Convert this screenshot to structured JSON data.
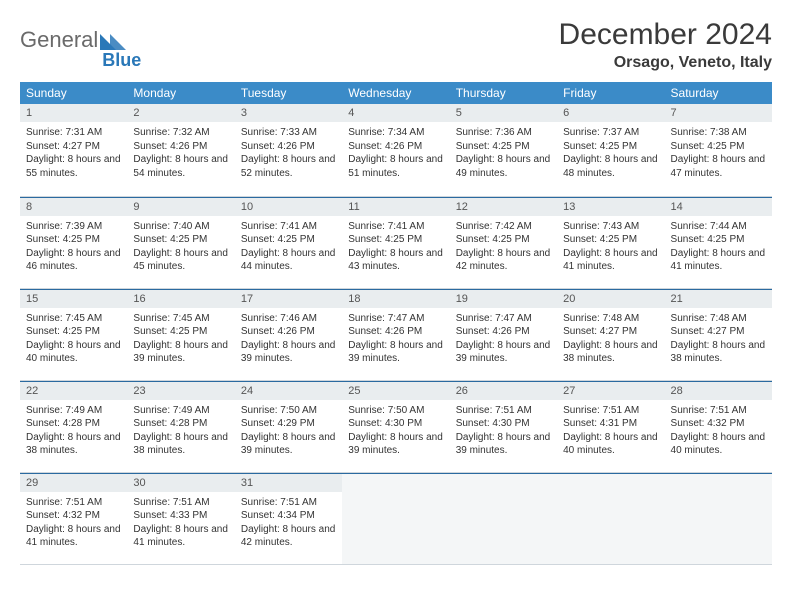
{
  "brand": {
    "part1": "General",
    "part2": "Blue"
  },
  "title": "December 2024",
  "location": "Orsago, Veneto, Italy",
  "colors": {
    "header_bg": "#3b8bc8",
    "header_text": "#ffffff",
    "daynum_bg": "#e9edef",
    "rule": "#2a6aa0",
    "brand_gray": "#6a6a6a",
    "brand_blue": "#2a78b8"
  },
  "daysOfWeek": [
    "Sunday",
    "Monday",
    "Tuesday",
    "Wednesday",
    "Thursday",
    "Friday",
    "Saturday"
  ],
  "days": [
    {
      "n": 1,
      "sr": "7:31 AM",
      "ss": "4:27 PM",
      "dl": "8 hours and 55 minutes."
    },
    {
      "n": 2,
      "sr": "7:32 AM",
      "ss": "4:26 PM",
      "dl": "8 hours and 54 minutes."
    },
    {
      "n": 3,
      "sr": "7:33 AM",
      "ss": "4:26 PM",
      "dl": "8 hours and 52 minutes."
    },
    {
      "n": 4,
      "sr": "7:34 AM",
      "ss": "4:26 PM",
      "dl": "8 hours and 51 minutes."
    },
    {
      "n": 5,
      "sr": "7:36 AM",
      "ss": "4:25 PM",
      "dl": "8 hours and 49 minutes."
    },
    {
      "n": 6,
      "sr": "7:37 AM",
      "ss": "4:25 PM",
      "dl": "8 hours and 48 minutes."
    },
    {
      "n": 7,
      "sr": "7:38 AM",
      "ss": "4:25 PM",
      "dl": "8 hours and 47 minutes."
    },
    {
      "n": 8,
      "sr": "7:39 AM",
      "ss": "4:25 PM",
      "dl": "8 hours and 46 minutes."
    },
    {
      "n": 9,
      "sr": "7:40 AM",
      "ss": "4:25 PM",
      "dl": "8 hours and 45 minutes."
    },
    {
      "n": 10,
      "sr": "7:41 AM",
      "ss": "4:25 PM",
      "dl": "8 hours and 44 minutes."
    },
    {
      "n": 11,
      "sr": "7:41 AM",
      "ss": "4:25 PM",
      "dl": "8 hours and 43 minutes."
    },
    {
      "n": 12,
      "sr": "7:42 AM",
      "ss": "4:25 PM",
      "dl": "8 hours and 42 minutes."
    },
    {
      "n": 13,
      "sr": "7:43 AM",
      "ss": "4:25 PM",
      "dl": "8 hours and 41 minutes."
    },
    {
      "n": 14,
      "sr": "7:44 AM",
      "ss": "4:25 PM",
      "dl": "8 hours and 41 minutes."
    },
    {
      "n": 15,
      "sr": "7:45 AM",
      "ss": "4:25 PM",
      "dl": "8 hours and 40 minutes."
    },
    {
      "n": 16,
      "sr": "7:45 AM",
      "ss": "4:25 PM",
      "dl": "8 hours and 39 minutes."
    },
    {
      "n": 17,
      "sr": "7:46 AM",
      "ss": "4:26 PM",
      "dl": "8 hours and 39 minutes."
    },
    {
      "n": 18,
      "sr": "7:47 AM",
      "ss": "4:26 PM",
      "dl": "8 hours and 39 minutes."
    },
    {
      "n": 19,
      "sr": "7:47 AM",
      "ss": "4:26 PM",
      "dl": "8 hours and 39 minutes."
    },
    {
      "n": 20,
      "sr": "7:48 AM",
      "ss": "4:27 PM",
      "dl": "8 hours and 38 minutes."
    },
    {
      "n": 21,
      "sr": "7:48 AM",
      "ss": "4:27 PM",
      "dl": "8 hours and 38 minutes."
    },
    {
      "n": 22,
      "sr": "7:49 AM",
      "ss": "4:28 PM",
      "dl": "8 hours and 38 minutes."
    },
    {
      "n": 23,
      "sr": "7:49 AM",
      "ss": "4:28 PM",
      "dl": "8 hours and 38 minutes."
    },
    {
      "n": 24,
      "sr": "7:50 AM",
      "ss": "4:29 PM",
      "dl": "8 hours and 39 minutes."
    },
    {
      "n": 25,
      "sr": "7:50 AM",
      "ss": "4:30 PM",
      "dl": "8 hours and 39 minutes."
    },
    {
      "n": 26,
      "sr": "7:51 AM",
      "ss": "4:30 PM",
      "dl": "8 hours and 39 minutes."
    },
    {
      "n": 27,
      "sr": "7:51 AM",
      "ss": "4:31 PM",
      "dl": "8 hours and 40 minutes."
    },
    {
      "n": 28,
      "sr": "7:51 AM",
      "ss": "4:32 PM",
      "dl": "8 hours and 40 minutes."
    },
    {
      "n": 29,
      "sr": "7:51 AM",
      "ss": "4:32 PM",
      "dl": "8 hours and 41 minutes."
    },
    {
      "n": 30,
      "sr": "7:51 AM",
      "ss": "4:33 PM",
      "dl": "8 hours and 41 minutes."
    },
    {
      "n": 31,
      "sr": "7:51 AM",
      "ss": "4:34 PM",
      "dl": "8 hours and 42 minutes."
    }
  ],
  "labels": {
    "sunrise": "Sunrise:",
    "sunset": "Sunset:",
    "daylight": "Daylight:"
  },
  "layout": {
    "weeks": 5,
    "cols": 7,
    "firstDayCol": 0
  }
}
